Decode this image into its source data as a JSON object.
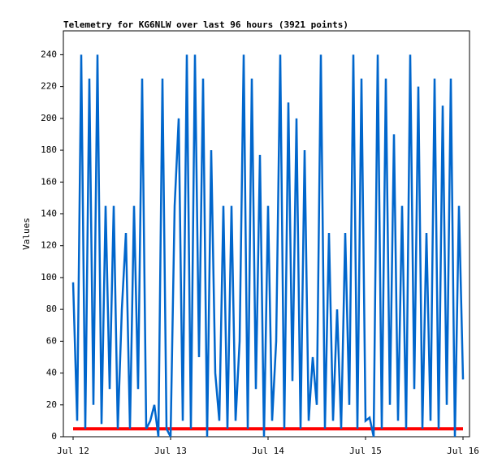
{
  "chart_data": {
    "type": "line",
    "title": "Telemetry for KG6NLW over last 96 hours (3921 points)",
    "ylabel": "Values",
    "xlim": [
      -2.4,
      97.6
    ],
    "xticks": [
      {
        "value": 0,
        "label": "Jul 12"
      },
      {
        "value": 24,
        "label": "Jul 13"
      },
      {
        "value": 48,
        "label": "Jul 14"
      },
      {
        "value": 72,
        "label": "Jul 15"
      },
      {
        "value": 96,
        "label": "Jul 16"
      }
    ],
    "ylim": [
      0,
      255
    ],
    "yticks": [
      0,
      20,
      40,
      60,
      80,
      100,
      120,
      140,
      160,
      180,
      200,
      220,
      240
    ],
    "series": [
      {
        "color": "#ff0000",
        "x": [
          0,
          96
        ],
        "values": [
          5,
          5
        ]
      },
      {
        "color": "#0066cc",
        "x": [
          0,
          1,
          2,
          3,
          4,
          5,
          6,
          7,
          8,
          9,
          10,
          11,
          12,
          13,
          14,
          15,
          16,
          17,
          18,
          19,
          20,
          21,
          22,
          23,
          24,
          25,
          26,
          27,
          28,
          29,
          30,
          31,
          32,
          33,
          34,
          35,
          36,
          37,
          38,
          39,
          40,
          41,
          42,
          43,
          44,
          45,
          46,
          47,
          48,
          49,
          50,
          51,
          52,
          53,
          54,
          55,
          56,
          57,
          58,
          59,
          60,
          61,
          62,
          63,
          64,
          65,
          66,
          67,
          68,
          69,
          70,
          71,
          72,
          73,
          74,
          75,
          76,
          77,
          78,
          79,
          80,
          81,
          82,
          83,
          84,
          85,
          86,
          87,
          88,
          89,
          90,
          91,
          92,
          93,
          94,
          95,
          96
        ],
        "values": [
          97,
          10,
          240,
          5,
          225,
          20,
          240,
          8,
          145,
          30,
          145,
          5,
          80,
          128,
          5,
          145,
          30,
          225,
          5,
          10,
          20,
          0,
          225,
          5,
          0,
          145,
          200,
          10,
          240,
          5,
          240,
          50,
          225,
          0,
          180,
          40,
          10,
          145,
          5,
          145,
          10,
          60,
          240,
          5,
          225,
          30,
          177,
          0,
          145,
          10,
          60,
          240,
          5,
          210,
          35,
          200,
          5,
          180,
          10,
          50,
          20,
          240,
          5,
          128,
          10,
          80,
          5,
          128,
          20,
          240,
          5,
          225,
          10,
          12,
          0,
          240,
          5,
          225,
          20,
          190,
          10,
          145,
          5,
          240,
          30,
          220,
          5,
          128,
          10,
          225,
          5,
          208,
          20,
          225,
          0,
          145,
          36
        ]
      }
    ]
  }
}
